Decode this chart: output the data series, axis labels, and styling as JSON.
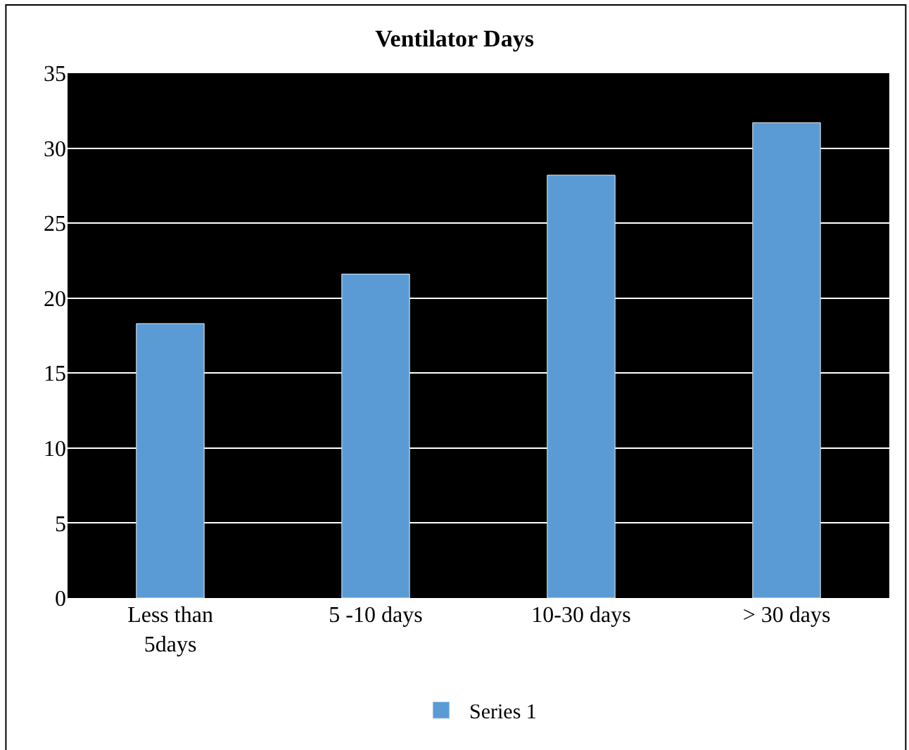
{
  "chart_data": {
    "type": "bar",
    "title": "Ventilator Days",
    "categories": [
      "Less than\n5days",
      "5 -10 days",
      "10-30 days",
      "> 30 days"
    ],
    "series": [
      {
        "name": "Series 1",
        "color": "#5b9bd5",
        "values": [
          18.3,
          21.6,
          28.2,
          31.7
        ]
      }
    ],
    "ylim": [
      0,
      35
    ],
    "yticks": [
      0,
      5,
      10,
      15,
      20,
      25,
      30,
      35
    ],
    "grid": "y",
    "legend": "bottom"
  }
}
